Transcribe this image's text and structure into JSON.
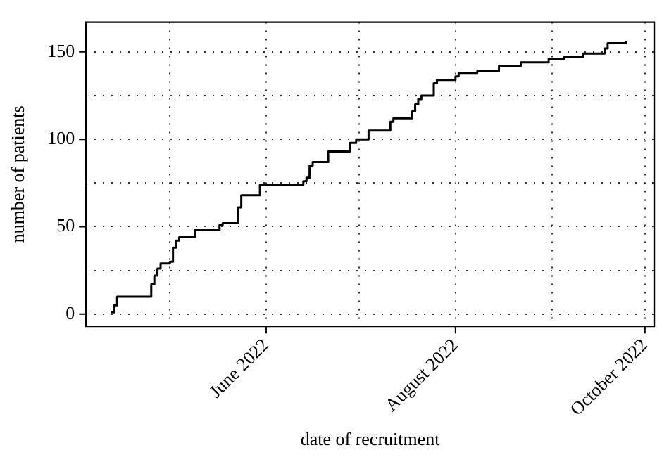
{
  "chart_data": {
    "type": "step",
    "xlabel": "date of recruitment",
    "ylabel": "number of patients",
    "x": [
      "2022-04-12",
      "2022-04-13",
      "2022-04-14",
      "2022-04-25",
      "2022-04-26",
      "2022-04-27",
      "2022-04-28",
      "2022-05-01",
      "2022-05-02",
      "2022-05-03",
      "2022-05-04",
      "2022-05-09",
      "2022-05-17",
      "2022-05-18",
      "2022-05-23",
      "2022-05-24",
      "2022-05-30",
      "2022-06-13",
      "2022-06-14",
      "2022-06-15",
      "2022-06-16",
      "2022-06-21",
      "2022-06-28",
      "2022-06-30",
      "2022-07-04",
      "2022-07-11",
      "2022-07-12",
      "2022-07-18",
      "2022-07-19",
      "2022-07-20",
      "2022-07-21",
      "2022-07-25",
      "2022-07-26",
      "2022-08-01",
      "2022-08-02",
      "2022-08-08",
      "2022-08-15",
      "2022-08-22",
      "2022-08-31",
      "2022-09-05",
      "2022-09-11",
      "2022-09-18",
      "2022-09-19",
      "2022-09-25"
    ],
    "series": [
      {
        "color": "#000000",
        "values": [
          1,
          5,
          10,
          17,
          22,
          26,
          29,
          30,
          38,
          42,
          44,
          48,
          51,
          52,
          61,
          68,
          74,
          76,
          78,
          85,
          87,
          93,
          98,
          100,
          105,
          110,
          112,
          116,
          120,
          123,
          125,
          132,
          134,
          136,
          138,
          139,
          142,
          144,
          146,
          147,
          149,
          152,
          155,
          156
        ]
      }
    ],
    "xlim": [
      "2022-04-04",
      "2022-10-04"
    ],
    "xticks": [
      {
        "value": "2022-05-01",
        "label": null
      },
      {
        "value": "2022-06-01",
        "label": "June 2022"
      },
      {
        "value": "2022-07-01",
        "label": null
      },
      {
        "value": "2022-08-01",
        "label": "August 2022"
      },
      {
        "value": "2022-09-01",
        "label": null
      },
      {
        "value": "2022-10-01",
        "label": "October 2022"
      }
    ],
    "ylim": [
      -7,
      167
    ],
    "yticks": [
      0,
      {
        "value": 25,
        "label": null
      },
      50,
      {
        "value": 75,
        "label": null
      },
      100,
      {
        "value": 125,
        "label": null
      },
      150
    ],
    "grid": true,
    "legend": false,
    "marker": "none",
    "line_style": "solid"
  }
}
